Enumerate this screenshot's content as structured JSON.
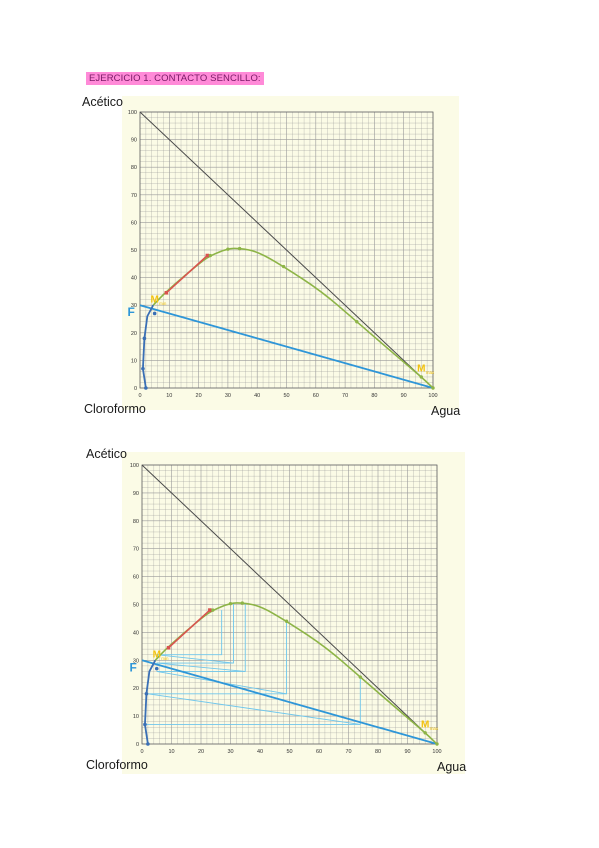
{
  "page_title": "EJERCICIO 1. CONTACTO SENCILLO:",
  "colors": {
    "binodal": "#8db446",
    "tie_line": "#d9534f",
    "feed_line": "#2e96d8",
    "raffinate": "#3a6fb5",
    "marker": "#f2c20f",
    "grid": "#9a9a9a",
    "hypotenuse": "#4a4a4a",
    "construction": "#6fc6ec"
  },
  "chart_data": [
    {
      "type": "ternary-right-triangle",
      "vertex_labels": {
        "top": "Acético",
        "bottom_left": "Cloroformo",
        "bottom_right": "Agua"
      },
      "xlim": [
        0,
        100
      ],
      "ylim": [
        0,
        100
      ],
      "ticks": [
        0,
        10,
        20,
        30,
        40,
        50,
        60,
        70,
        80,
        90,
        100
      ],
      "grid": true,
      "series": [
        {
          "key": "binodal_raffinate",
          "x": [
            2,
            1,
            1.5,
            2.5,
            4.5
          ],
          "y": [
            0,
            7,
            18,
            26,
            30
          ]
        },
        {
          "key": "binodal_extract",
          "x": [
            4.5,
            9,
            20,
            24,
            30,
            34,
            40,
            49,
            62,
            74,
            86,
            96,
            100
          ],
          "y": [
            30,
            35,
            45,
            48,
            50.5,
            50.6,
            49.5,
            44,
            35,
            24,
            13,
            4,
            0
          ]
        },
        {
          "key": "tie_line",
          "x": [
            9,
            23
          ],
          "y": [
            34.5,
            48
          ]
        },
        {
          "key": "feed_line",
          "x": [
            0,
            100
          ],
          "y": [
            30,
            0
          ]
        },
        {
          "key": "raffinate_points",
          "x": [
            2,
            1,
            1.5,
            5
          ],
          "y": [
            0,
            7,
            18,
            27
          ]
        },
        {
          "key": "extract_points",
          "x": [
            24,
            30,
            34,
            49,
            74,
            96,
            100
          ],
          "y": [
            48,
            50.3,
            50.5,
            44,
            24,
            4,
            0
          ]
        }
      ],
      "annotations": [
        {
          "text": "F",
          "x": -3,
          "y": 26
        },
        {
          "text": "M",
          "sub": "min",
          "x": 5,
          "y": 31
        },
        {
          "text": "M",
          "sub": "max",
          "x": 96,
          "y": 6
        }
      ]
    },
    {
      "type": "ternary-right-triangle",
      "vertex_labels": {
        "top": "Acético",
        "bottom_left": "Cloroformo",
        "bottom_right": "Agua"
      },
      "xlim": [
        0,
        100
      ],
      "ylim": [
        0,
        100
      ],
      "ticks": [
        0,
        10,
        20,
        30,
        40,
        50,
        60,
        70,
        80,
        90,
        100
      ],
      "grid": true,
      "series": [
        {
          "key": "binodal_raffinate",
          "x": [
            2,
            1,
            1.5,
            2.5,
            4.5
          ],
          "y": [
            0,
            7,
            18,
            26,
            30
          ]
        },
        {
          "key": "binodal_extract",
          "x": [
            4.5,
            9,
            20,
            24,
            30,
            34,
            40,
            49,
            62,
            74,
            86,
            96,
            100
          ],
          "y": [
            30,
            35,
            45,
            48,
            50.5,
            50.6,
            49.5,
            44,
            35,
            24,
            13,
            4,
            0
          ]
        },
        {
          "key": "tie_line",
          "x": [
            9,
            23
          ],
          "y": [
            34.5,
            48
          ]
        },
        {
          "key": "feed_line",
          "x": [
            0,
            100
          ],
          "y": [
            30,
            0
          ]
        },
        {
          "key": "raffinate_points",
          "x": [
            2,
            1,
            1.5,
            5
          ],
          "y": [
            0,
            7,
            18,
            27
          ]
        },
        {
          "key": "extract_points",
          "x": [
            24,
            30,
            34,
            49,
            74,
            96,
            100
          ],
          "y": [
            48,
            50.3,
            50.5,
            44,
            24,
            4,
            0
          ]
        }
      ],
      "construction_lines": [
        {
          "x": [
            5,
            27,
            27
          ],
          "y": [
            32,
            32,
            48
          ]
        },
        {
          "x": [
            5,
            31,
            31
          ],
          "y": [
            29,
            29,
            50.3
          ]
        },
        {
          "x": [
            5,
            35,
            35
          ],
          "y": [
            26,
            26,
            50.5
          ]
        },
        {
          "x": [
            2,
            49,
            49
          ],
          "y": [
            18,
            18,
            44
          ]
        },
        {
          "x": [
            1,
            74,
            74
          ],
          "y": [
            7,
            7,
            24
          ]
        },
        {
          "x": [
            5,
            31
          ],
          "y": [
            32,
            29
          ]
        },
        {
          "x": [
            5,
            35
          ],
          "y": [
            29,
            26
          ]
        },
        {
          "x": [
            5,
            49
          ],
          "y": [
            26,
            18
          ]
        },
        {
          "x": [
            2,
            74
          ],
          "y": [
            18,
            7
          ]
        }
      ],
      "annotations": [
        {
          "text": "F",
          "x": -3,
          "y": 26
        },
        {
          "text": "M",
          "sub": "min",
          "x": 5,
          "y": 31
        },
        {
          "text": "M",
          "sub": "max",
          "x": 96,
          "y": 6
        }
      ]
    }
  ]
}
